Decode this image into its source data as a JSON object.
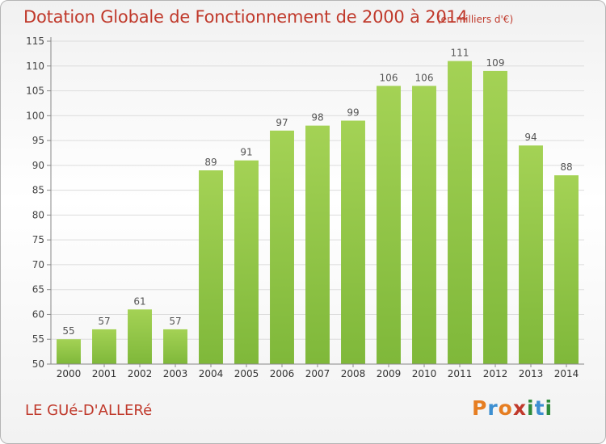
{
  "header": {
    "title": "Dotation Globale de Fonctionnement de 2000 à 2014",
    "unit": "(en milliers d'€)"
  },
  "footer": {
    "commune": "LE GUé-D'ALLERé",
    "logo_text": "Proxiti",
    "logo_colors": [
      "#e67e22",
      "#3d8fd1",
      "#e67e22",
      "#c0392b",
      "#2e8b3a",
      "#3d8fd1",
      "#2e8b3a"
    ]
  },
  "chart_data": {
    "type": "bar",
    "title": "Dotation Globale de Fonctionnement de 2000 à 2014",
    "subtitle": "(en milliers d'€)",
    "categories": [
      "2000",
      "2001",
      "2002",
      "2003",
      "2004",
      "2005",
      "2006",
      "2007",
      "2008",
      "2009",
      "2010",
      "2011",
      "2012",
      "2013",
      "2014"
    ],
    "values": [
      55,
      57,
      61,
      57,
      89,
      91,
      97,
      98,
      99,
      106,
      106,
      111,
      109,
      94,
      88
    ],
    "ylim": [
      50,
      115
    ],
    "yticks": [
      50,
      55,
      60,
      65,
      70,
      75,
      80,
      85,
      90,
      95,
      100,
      105,
      110,
      115
    ],
    "grid": true,
    "bar_color": "#7fb83a",
    "bar_color_light": "#a4d255",
    "label_color": "#555555"
  }
}
